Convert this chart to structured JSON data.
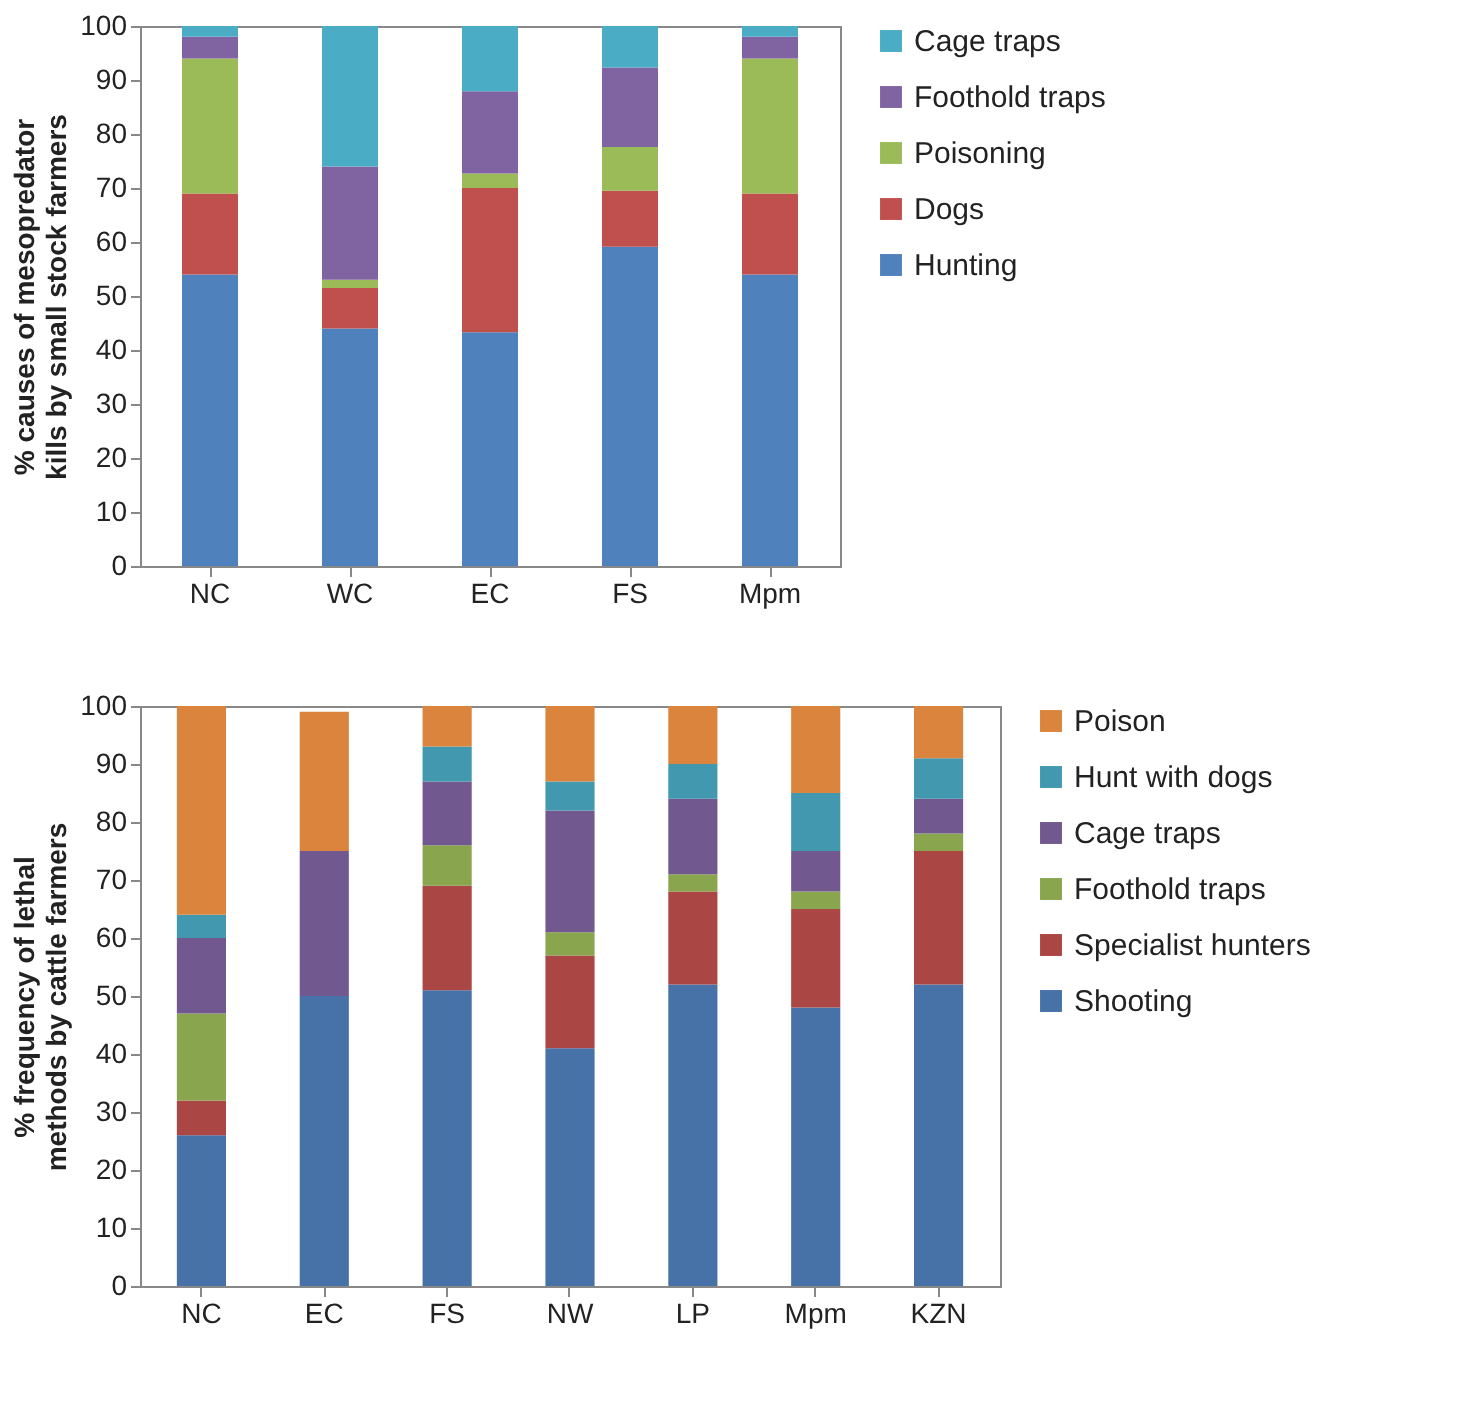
{
  "chart_data": [
    {
      "type": "bar",
      "ylabel": "% causes of mesopredator kills by small stock farmers",
      "categories": [
        "NC",
        "WC",
        "EC",
        "FS",
        "Mpm"
      ],
      "stacked": true,
      "legend": "right",
      "grid": false,
      "ylim": [
        0,
        100
      ],
      "yticks": [
        0,
        10,
        20,
        30,
        40,
        50,
        60,
        70,
        80,
        90,
        100
      ],
      "series": [
        {
          "name": "Hunting",
          "color": "#4f81bd",
          "values": [
            54,
            44,
            43.3,
            59.1,
            54
          ]
        },
        {
          "name": "Dogs",
          "color": "#c0504d",
          "values": [
            15,
            7.5,
            26.7,
            10.4,
            15
          ]
        },
        {
          "name": "Poisoning",
          "color": "#9bbb59",
          "values": [
            25,
            1.5,
            2.7,
            8.1,
            25
          ]
        },
        {
          "name": "Foothold traps",
          "color": "#8064a2",
          "values": [
            4,
            21,
            15.2,
            14.7,
            4
          ]
        },
        {
          "name": "Cage traps",
          "color": "#4bacc6",
          "values": [
            2,
            26,
            12.1,
            7.7,
            2
          ]
        }
      ]
    },
    {
      "type": "bar",
      "ylabel": "% frequency of lethal methods by cattle farmers",
      "categories": [
        "NC",
        "EC",
        "FS",
        "NW",
        "LP",
        "Mpm",
        "KZN"
      ],
      "stacked": true,
      "legend": "right",
      "grid": false,
      "ylim": [
        0,
        100
      ],
      "yticks": [
        0,
        10,
        20,
        30,
        40,
        50,
        60,
        70,
        80,
        90,
        100
      ],
      "series": [
        {
          "name": "Shooting",
          "color": "#4672a8",
          "values": [
            26,
            50,
            51,
            41,
            52,
            48,
            52
          ]
        },
        {
          "name": "Specialist hunters",
          "color": "#aa4643",
          "values": [
            6,
            0,
            18,
            16,
            16,
            17,
            23
          ]
        },
        {
          "name": "Foothold traps",
          "color": "#89a54e",
          "values": [
            15,
            0,
            7,
            4,
            3,
            3,
            3
          ]
        },
        {
          "name": "Cage traps",
          "color": "#71588f",
          "values": [
            13,
            25,
            11,
            21,
            13,
            7,
            6
          ]
        },
        {
          "name": "Hunt with dogs",
          "color": "#4198af",
          "values": [
            4,
            0,
            6,
            5,
            6,
            10,
            7
          ]
        },
        {
          "name": "Poison",
          "color": "#db843d",
          "values": [
            36,
            24,
            7,
            13,
            10,
            15,
            9
          ]
        }
      ]
    }
  ]
}
